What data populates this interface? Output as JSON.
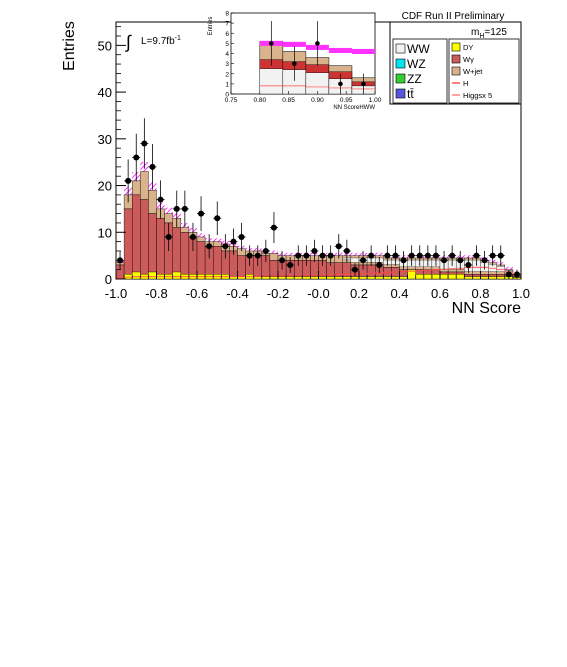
{
  "header": {
    "experiment": "CDF Run II Preliminary",
    "mass_label": "m",
    "mass_sub": "H",
    "mass_value": "=125",
    "lumi_int": "∫",
    "lumi_text": "L=9.7fb",
    "lumi_sup": "-1"
  },
  "legend": {
    "left": [
      {
        "label": "WW",
        "color": "#f2f2f2"
      },
      {
        "label": "WZ",
        "color": "#00e5ee"
      },
      {
        "label": "ZZ",
        "color": "#33cc33"
      },
      {
        "label": "tt̄",
        "color": "#5555dd"
      }
    ],
    "right": [
      {
        "label": "DY",
        "color": "#ffff00"
      },
      {
        "label": "Wγ",
        "color": "#cc5b5b"
      },
      {
        "label": "W+jet",
        "color": "#d9b38c"
      },
      {
        "label": "H",
        "color": "#ff0000"
      },
      {
        "label": "Higgsx 5",
        "color": "#ff4444"
      }
    ]
  },
  "chart_data": [
    {
      "type": "bar",
      "panel": "main",
      "xlabel": "NN Score",
      "ylabel": "Entries",
      "xlim": [
        -1.0,
        1.0
      ],
      "ylim": [
        0,
        55
      ],
      "xticks": [
        "-1.0",
        "-0.8",
        "-0.6",
        "-0.4",
        "-0.2",
        "-0.0",
        "0.2",
        "0.4",
        "0.6",
        "0.8",
        "1.0"
      ],
      "yticks": [
        "0",
        "10",
        "20",
        "30",
        "40",
        "50"
      ],
      "bin_edges_start": -1.0,
      "bin_width": 0.04,
      "wgamma": [
        3,
        15,
        18,
        17,
        14,
        13,
        12,
        11,
        10,
        9,
        8,
        7,
        7,
        6,
        6,
        5,
        5,
        5,
        5,
        4,
        4,
        4,
        4,
        4,
        4,
        4,
        3.5,
        3.5,
        3.5,
        3,
        3,
        3,
        3,
        2.5,
        2.5,
        2,
        2,
        2,
        2,
        2,
        1.5,
        1.5,
        1.5,
        1,
        1,
        1,
        1,
        1,
        1,
        0.5
      ],
      "total": [
        3.5,
        18,
        21,
        23,
        19,
        15,
        14,
        13,
        11,
        10,
        9,
        8,
        8,
        7.5,
        7,
        6.5,
        6,
        6,
        5.5,
        5.5,
        5,
        5,
        5,
        5,
        5,
        5,
        5,
        5,
        5,
        5,
        5,
        5,
        5,
        4.5,
        4.5,
        4.5,
        4.5,
        4.5,
        4.5,
        4.5,
        4.5,
        4.5,
        4.5,
        4.5,
        4.5,
        4,
        3.5,
        3,
        2,
        1
      ],
      "signal_x5": [
        0.2,
        0.4,
        0.5,
        0.5,
        0.5,
        0.5,
        0.5,
        0.5,
        0.5,
        0.5,
        0.5,
        0.5,
        0.5,
        0.5,
        0.5,
        0.5,
        0.5,
        0.5,
        0.6,
        0.6,
        0.6,
        0.6,
        0.7,
        0.7,
        0.8,
        0.8,
        0.9,
        0.9,
        1,
        1,
        1.1,
        1.2,
        1.3,
        1.4,
        1.5,
        1.6,
        1.7,
        1.8,
        1.9,
        2,
        2.1,
        2.2,
        2.3,
        2.4,
        2.5,
        2.5,
        2.3,
        2,
        1.5,
        0.8
      ],
      "dy": [
        0,
        1,
        1.5,
        1,
        1.5,
        1,
        1,
        1.5,
        1,
        1,
        1,
        1,
        1,
        1,
        0.5,
        0.5,
        1,
        0.5,
        0.5,
        0.5,
        0.5,
        0.5,
        0.5,
        0.5,
        0.5,
        0.5,
        0.5,
        0.5,
        0.5,
        0.5,
        0.5,
        0.5,
        0.5,
        0.5,
        0.5,
        0.5,
        2,
        1,
        1,
        1,
        1,
        1,
        1,
        0.5,
        0.5,
        0.5,
        0.5,
        0.5,
        0.5,
        0.3
      ],
      "data_points": [
        {
          "x": -0.98,
          "y": 4,
          "err": 2
        },
        {
          "x": -0.94,
          "y": 21,
          "err": 4.6
        },
        {
          "x": -0.9,
          "y": 26,
          "err": 5.1
        },
        {
          "x": -0.86,
          "y": 29,
          "err": 5.4
        },
        {
          "x": -0.82,
          "y": 24,
          "err": 4.9
        },
        {
          "x": -0.78,
          "y": 17,
          "err": 4.1
        },
        {
          "x": -0.74,
          "y": 9,
          "err": 3
        },
        {
          "x": -0.7,
          "y": 15,
          "err": 3.9
        },
        {
          "x": -0.66,
          "y": 15,
          "err": 3.9
        },
        {
          "x": -0.62,
          "y": 9,
          "err": 3
        },
        {
          "x": -0.58,
          "y": 14,
          "err": 3.7
        },
        {
          "x": -0.54,
          "y": 7,
          "err": 2.6
        },
        {
          "x": -0.5,
          "y": 13,
          "err": 3.6
        },
        {
          "x": -0.46,
          "y": 7,
          "err": 2.6
        },
        {
          "x": -0.42,
          "y": 8,
          "err": 2.8
        },
        {
          "x": -0.38,
          "y": 9,
          "err": 3
        },
        {
          "x": -0.34,
          "y": 5,
          "err": 2.2
        },
        {
          "x": -0.3,
          "y": 5,
          "err": 2.2
        },
        {
          "x": -0.26,
          "y": 6,
          "err": 2.4
        },
        {
          "x": -0.22,
          "y": 11,
          "err": 3.3
        },
        {
          "x": -0.18,
          "y": 4,
          "err": 2
        },
        {
          "x": -0.14,
          "y": 3,
          "err": 1.7
        },
        {
          "x": -0.1,
          "y": 5,
          "err": 2.2
        },
        {
          "x": -0.06,
          "y": 5,
          "err": 2.2
        },
        {
          "x": -0.02,
          "y": 6,
          "err": 2.4
        },
        {
          "x": 0.02,
          "y": 5,
          "err": 2.2
        },
        {
          "x": 0.06,
          "y": 5,
          "err": 2.2
        },
        {
          "x": 0.1,
          "y": 7,
          "err": 2.6
        },
        {
          "x": 0.14,
          "y": 6,
          "err": 2.4
        },
        {
          "x": 0.18,
          "y": 2,
          "err": 1.4
        },
        {
          "x": 0.22,
          "y": 4,
          "err": 2
        },
        {
          "x": 0.26,
          "y": 5,
          "err": 2.2
        },
        {
          "x": 0.3,
          "y": 3,
          "err": 1.7
        },
        {
          "x": 0.34,
          "y": 5,
          "err": 2.2
        },
        {
          "x": 0.38,
          "y": 5,
          "err": 2.2
        },
        {
          "x": 0.42,
          "y": 4,
          "err": 2
        },
        {
          "x": 0.46,
          "y": 5,
          "err": 2.2
        },
        {
          "x": 0.5,
          "y": 5,
          "err": 2.2
        },
        {
          "x": 0.54,
          "y": 5,
          "err": 2.2
        },
        {
          "x": 0.58,
          "y": 5,
          "err": 2.2
        },
        {
          "x": 0.62,
          "y": 4,
          "err": 2
        },
        {
          "x": 0.66,
          "y": 5,
          "err": 2.2
        },
        {
          "x": 0.7,
          "y": 4,
          "err": 2
        },
        {
          "x": 0.74,
          "y": 3,
          "err": 1.7
        },
        {
          "x": 0.78,
          "y": 5,
          "err": 2.2
        },
        {
          "x": 0.82,
          "y": 4,
          "err": 2
        },
        {
          "x": 0.86,
          "y": 5,
          "err": 2.2
        },
        {
          "x": 0.9,
          "y": 5,
          "err": 2.2
        },
        {
          "x": 0.94,
          "y": 1,
          "err": 1
        },
        {
          "x": 0.98,
          "y": 1,
          "err": 1
        }
      ]
    },
    {
      "type": "bar",
      "panel": "inset",
      "xlabel": "NN ScoreHWW",
      "ylabel": "Entries",
      "xlim": [
        0.75,
        1.0
      ],
      "ylim": [
        0,
        8
      ],
      "xticks": [
        "0.75",
        "0.80",
        "0.85",
        "0.90",
        "0.95",
        "1.00"
      ],
      "yticks": [
        "0",
        "1",
        "2",
        "3",
        "4",
        "5",
        "6",
        "7",
        "8"
      ],
      "bins": [
        {
          "x0": 0.8,
          "x1": 0.84,
          "total": 5.2,
          "wjet": 1.7,
          "ww": 2.5,
          "red": 3.4
        },
        {
          "x0": 0.84,
          "x1": 0.88,
          "total": 4.2,
          "wjet": 1.0,
          "ww": 2.4,
          "red": 3.2
        },
        {
          "x0": 0.88,
          "x1": 0.92,
          "total": 3.6,
          "wjet": 0.7,
          "ww": 2.1,
          "red": 2.9
        },
        {
          "x0": 0.92,
          "x1": 0.96,
          "total": 2.8,
          "wjet": 0.6,
          "ww": 1.5,
          "red": 2.2
        },
        {
          "x0": 0.96,
          "x1": 1.0,
          "total": 1.6,
          "wjet": 0.5,
          "ww": 0.8,
          "red": 1.2
        }
      ],
      "signal_x5": [
        0.8,
        0.8,
        0.7,
        0.6,
        0.5
      ],
      "magenta_band": [
        5.0,
        4.9,
        4.6,
        4.3,
        4.2
      ],
      "data_points": [
        {
          "x": 0.82,
          "y": 5,
          "err": 2.2
        },
        {
          "x": 0.86,
          "y": 3,
          "err": 1.7
        },
        {
          "x": 0.9,
          "y": 5,
          "err": 2.2
        },
        {
          "x": 0.94,
          "y": 1,
          "err": 1
        },
        {
          "x": 0.98,
          "y": 1,
          "err": 1
        }
      ]
    }
  ]
}
